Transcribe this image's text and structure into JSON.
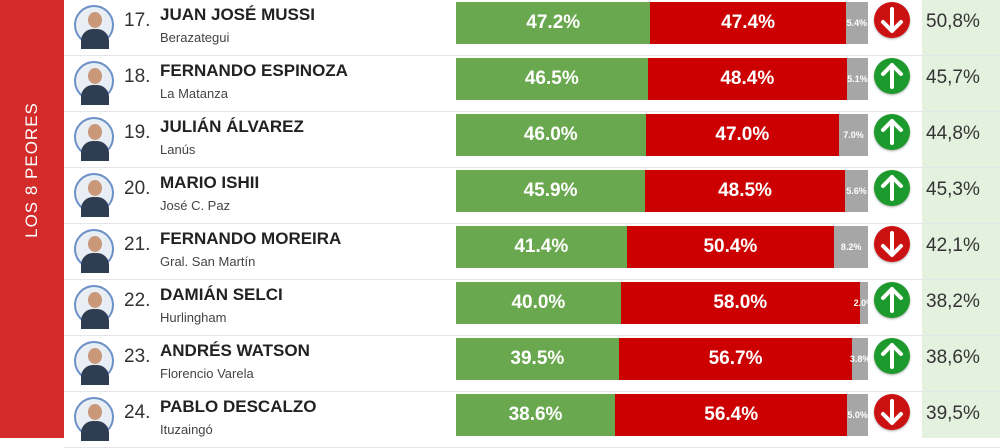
{
  "section_label": "LOS 8 PEORES",
  "colors": {
    "approve": "#6aa84f",
    "disapprove": "#cc0000",
    "nsnc": "#a6a6a6",
    "side": "#d32a2a",
    "arrow_up": "#1c9a2e",
    "arrow_down": "#cc1111",
    "prev_bg": "#e4f1df"
  },
  "chart_data": {
    "type": "bar",
    "stacked": true,
    "categories": [
      "JUAN JOSÉ MUSSI",
      "FERNANDO ESPINOZA",
      "JULIÁN ÁLVAREZ",
      "MARIO ISHII",
      "FERNANDO MOREIRA",
      "DAMIÁN SELCI",
      "ANDRÉS WATSON",
      "PABLO DESCALZO"
    ],
    "series": [
      {
        "values": [
          47.2,
          46.5,
          46.0,
          45.9,
          41.4,
          40.0,
          39.5,
          38.6
        ],
        "color": "#6aa84f"
      },
      {
        "values": [
          47.4,
          48.4,
          47.0,
          48.5,
          50.4,
          58.0,
          56.7,
          56.4
        ],
        "color": "#cc0000"
      },
      {
        "values": [
          5.4,
          5.1,
          7.0,
          5.6,
          8.2,
          2.0,
          3.8,
          5.0
        ],
        "color": "#a6a6a6"
      }
    ]
  },
  "rows": [
    {
      "rank": "17.",
      "name": "JUAN JOSÉ MUSSI",
      "district": "Berazategui",
      "approve": "47.2%",
      "disapprove": "47.4%",
      "nsnc": "5.4%",
      "trend": "down",
      "trend_icon": "arrow-down-icon",
      "previous": "50,8%"
    },
    {
      "rank": "18.",
      "name": "FERNANDO ESPINOZA",
      "district": "La Matanza",
      "approve": "46.5%",
      "disapprove": "48.4%",
      "nsnc": "5.1%",
      "trend": "up",
      "trend_icon": "arrow-up-icon",
      "previous": "45,7%"
    },
    {
      "rank": "19.",
      "name": "JULIÁN ÁLVAREZ",
      "district": "Lanús",
      "approve": "46.0%",
      "disapprove": "47.0%",
      "nsnc": "7.0%",
      "trend": "up",
      "trend_icon": "arrow-up-icon",
      "previous": "44,8%"
    },
    {
      "rank": "20.",
      "name": "MARIO ISHII",
      "district": "José C. Paz",
      "approve": "45.9%",
      "disapprove": "48.5%",
      "nsnc": "5.6%",
      "trend": "up",
      "trend_icon": "arrow-up-icon",
      "previous": "45,3%"
    },
    {
      "rank": "21.",
      "name": "FERNANDO MOREIRA",
      "district": "Gral. San Martín",
      "approve": "41.4%",
      "disapprove": "50.4%",
      "nsnc": "8.2%",
      "trend": "down",
      "trend_icon": "arrow-down-icon",
      "previous": "42,1%"
    },
    {
      "rank": "22.",
      "name": "DAMIÁN SELCI",
      "district": "Hurlingham",
      "approve": "40.0%",
      "disapprove": "58.0%",
      "nsnc": "2.0%",
      "trend": "up",
      "trend_icon": "arrow-up-icon",
      "previous": "38,2%"
    },
    {
      "rank": "23.",
      "name": "ANDRÉS WATSON",
      "district": "Florencio Varela",
      "approve": "39.5%",
      "disapprove": "56.7%",
      "nsnc": "3.8%",
      "trend": "up",
      "trend_icon": "arrow-up-icon",
      "previous": "38,6%"
    },
    {
      "rank": "24.",
      "name": "PABLO DESCALZO",
      "district": "Ituzaingó",
      "approve": "38.6%",
      "disapprove": "56.4%",
      "nsnc": "5.0%",
      "trend": "down",
      "trend_icon": "arrow-down-icon",
      "previous": "39,5%"
    }
  ]
}
